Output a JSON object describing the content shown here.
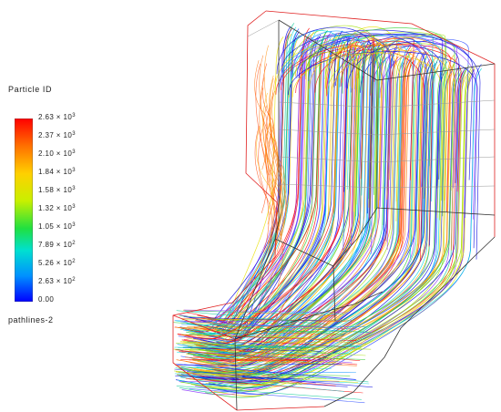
{
  "legend": {
    "title": "Particle ID",
    "ticks": [
      {
        "mantissa": "2.63",
        "exponent": "3"
      },
      {
        "mantissa": "2.37",
        "exponent": "3"
      },
      {
        "mantissa": "2.10",
        "exponent": "3"
      },
      {
        "mantissa": "1.84",
        "exponent": "3"
      },
      {
        "mantissa": "1.58",
        "exponent": "3"
      },
      {
        "mantissa": "1.32",
        "exponent": "3"
      },
      {
        "mantissa": "1.05",
        "exponent": "3"
      },
      {
        "mantissa": "7.89",
        "exponent": "2"
      },
      {
        "mantissa": "5.26",
        "exponent": "2"
      },
      {
        "mantissa": "2.63",
        "exponent": "2"
      },
      {
        "mantissa": "0.00",
        "exponent": ""
      }
    ],
    "colors": [
      "#ff0000",
      "#ff5000",
      "#ff9800",
      "#ffd000",
      "#d8f000",
      "#7ee800",
      "#20e050",
      "#00e0c8",
      "#00b8ff",
      "#0060ff",
      "#0000ff"
    ]
  },
  "footer": "pathlines-2",
  "line_palette": [
    "#ff0000",
    "#ff6a00",
    "#ffb000",
    "#e8e000",
    "#a0e000",
    "#30d030",
    "#00c890",
    "#00d8e0",
    "#0090ff",
    "#2040ff",
    "#0000e0",
    "#8a30ff"
  ]
}
